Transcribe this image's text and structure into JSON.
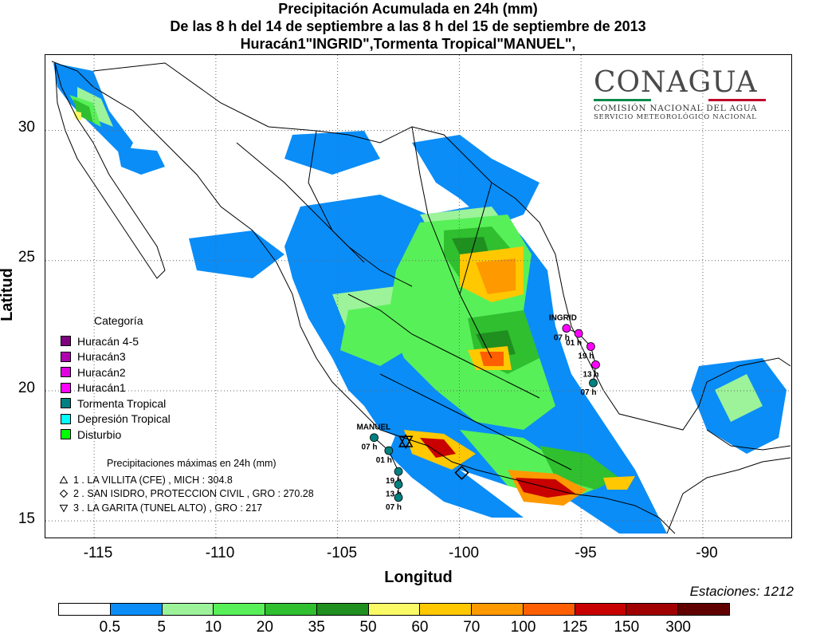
{
  "title": {
    "line1": "Precipitación Acumulada en 24h (mm)",
    "line2": "De las 8 h del 14 de septiembre  a las 8 h del 15 de septiembre de 2013",
    "line3": "Huracán1\"INGRID\",Tormenta Tropical\"MANUEL\","
  },
  "logo": {
    "brand": "CONAGUA",
    "line1": "COMISIÓN NACIONAL DEL AGUA",
    "line2": "SERVICIO METEOROLÓGICO NACIONAL"
  },
  "axes": {
    "ylabel": "Latitud",
    "xlabel": "Longitud",
    "lat_ticks": [
      "30",
      "25",
      "20",
      "15"
    ],
    "lon_ticks": [
      "-115",
      "-110",
      "-105",
      "-100",
      "-95",
      "-90"
    ],
    "lon_range": [
      -117,
      -86.3
    ],
    "lat_range": [
      14.3,
      32.9
    ],
    "grid": "dotted"
  },
  "stations": "Estaciones:  1212",
  "category_legend": {
    "title": "Categoría",
    "items": [
      {
        "label": "Huracán 4-5",
        "color": "#800080"
      },
      {
        "label": "Huracán3",
        "color": "#b000b0"
      },
      {
        "label": "Huracán2",
        "color": "#e000e0"
      },
      {
        "label": "Huracán1",
        "color": "#ff00ff"
      },
      {
        "label": "Tormenta Tropical",
        "color": "#008080"
      },
      {
        "label": "Depresión Tropical",
        "color": "#00ffff"
      },
      {
        "label": "Disturbio",
        "color": "#00ff00"
      }
    ]
  },
  "max_precip": {
    "title": "Precipitaciones máximas en 24h (mm)",
    "items": [
      {
        "symbol": "triangle-up",
        "label": "1 . LA VILLITA (CFE) , MICH : 304.8",
        "lon": -102.2,
        "lat": 18.05
      },
      {
        "symbol": "diamond",
        "label": "2 . SAN ISIDRO, PROTECCION CIVIL , GRO : 270.28",
        "lon": -99.9,
        "lat": 16.85
      },
      {
        "symbol": "triangle-down",
        "label": "3 . LA GARITA (TUNEL ALTO) , GRO : 217",
        "lon": -102.2,
        "lat": 18.05
      }
    ]
  },
  "storms": [
    {
      "name": "INGRID",
      "category_color": "#ff00ff",
      "track": [
        {
          "lon": -95.6,
          "lat": 22.4,
          "cat": "Huracán1",
          "time": "07 h"
        },
        {
          "lon": -95.1,
          "lat": 22.2,
          "cat": "Huracán1",
          "time": "01 h"
        },
        {
          "lon": -94.6,
          "lat": 21.7,
          "cat": "Huracán1",
          "time": "19 h"
        },
        {
          "lon": -94.4,
          "lat": 21.0,
          "cat": "Huracán1",
          "time": "13 h"
        },
        {
          "lon": -94.5,
          "lat": 20.3,
          "cat": "Tormenta Tropical",
          "time": "07 h"
        }
      ]
    },
    {
      "name": "MANUEL",
      "track": [
        {
          "lon": -103.5,
          "lat": 18.2,
          "cat": "Tormenta Tropical",
          "time": "07 h"
        },
        {
          "lon": -102.9,
          "lat": 17.7,
          "cat": "Tormenta Tropical",
          "time": "01 h"
        },
        {
          "lon": -102.5,
          "lat": 16.9,
          "cat": "Tormenta Tropical",
          "time": "19 h"
        },
        {
          "lon": -102.5,
          "lat": 16.4,
          "cat": "Tormenta Tropical",
          "time": "13 h"
        },
        {
          "lon": -102.5,
          "lat": 15.9,
          "cat": "Tormenta Tropical",
          "time": "07 h"
        }
      ]
    }
  ],
  "colorbar": {
    "labels": [
      "0.5",
      "5",
      "10",
      "20",
      "35",
      "50",
      "60",
      "70",
      "100",
      "125",
      "150",
      "300"
    ],
    "colors": [
      "#ffffff",
      "#0a8df7",
      "#9cf39a",
      "#58f058",
      "#2fbf2f",
      "#1f8f1f",
      "#fafa66",
      "#ffc800",
      "#ff9900",
      "#ff5f00",
      "#c80000",
      "#a00000",
      "#600000"
    ]
  }
}
